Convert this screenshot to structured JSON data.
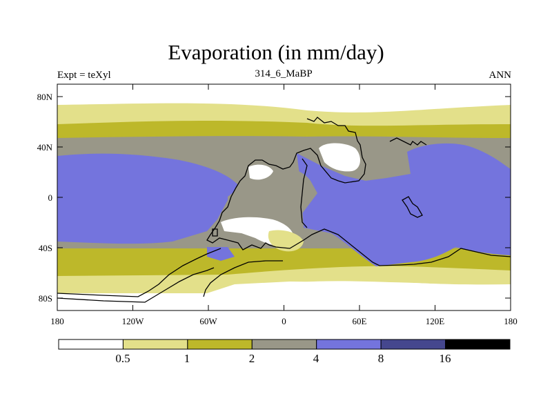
{
  "title": "Evaporation (in mm/day)",
  "subtitle_left": "Expt = teXyl",
  "subtitle_center": "314_6_MaBP",
  "subtitle_right": "ANN",
  "map": {
    "projection": "equirectangular",
    "lon_range": [
      -180,
      180
    ],
    "lat_range": [
      -90,
      90
    ],
    "x_tick_labels": [
      "180",
      "120W",
      "60W",
      "0",
      "60E",
      "120E",
      "180"
    ],
    "y_tick_labels": [
      "80N",
      "40N",
      "0",
      "40S",
      "80S"
    ]
  },
  "colorbar": {
    "levels": [
      "0.5",
      "1",
      "2",
      "4",
      "8",
      "16"
    ],
    "colors": [
      "#ffffff",
      "#e3e08a",
      "#bdb82a",
      "#999788",
      "#7474dd",
      "#45478e",
      "#000000"
    ]
  }
}
